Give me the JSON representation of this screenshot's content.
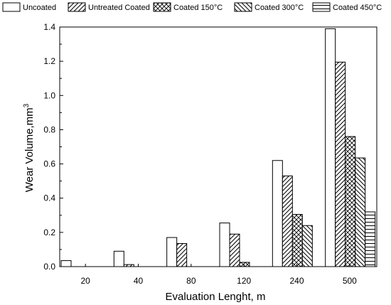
{
  "chart_data": {
    "type": "bar",
    "categories": [
      "20",
      "40",
      "80",
      "120",
      "240",
      "500"
    ],
    "series": [
      {
        "name": "Uncoated",
        "pattern": "none",
        "values": [
          0.035,
          0.09,
          0.17,
          0.255,
          0.62,
          1.39
        ]
      },
      {
        "name": "Untreated Coated",
        "pattern": "diag-forward",
        "values": [
          0.0,
          0.012,
          0.135,
          0.19,
          0.53,
          1.195
        ]
      },
      {
        "name": "Coated 150°C",
        "pattern": "crosshatch",
        "values": [
          0.0,
          0.0,
          0.0,
          0.025,
          0.305,
          0.76
        ]
      },
      {
        "name": "Coated 300°C",
        "pattern": "diag-back",
        "values": [
          0.0,
          0.0,
          0.0,
          0.0,
          0.24,
          0.635
        ]
      },
      {
        "name": "Coated 450°C",
        "pattern": "horizontal",
        "values": [
          0.0,
          0.0,
          0.0,
          0.0,
          0.0,
          0.32
        ]
      }
    ],
    "xlabel": "Evaluation Lenght, m",
    "ylabel": "Wear Volume,mm",
    "ylabel_superscript": "3",
    "ylim": [
      0.0,
      1.4
    ],
    "yticks": [
      "0.0",
      "0.2",
      "0.4",
      "0.6",
      "0.8",
      "1.0",
      "1.2",
      "1.4"
    ],
    "grid": false,
    "legend_position": "top"
  },
  "colors": {
    "bar_fill": "#ffffff",
    "stroke": "#000000"
  }
}
